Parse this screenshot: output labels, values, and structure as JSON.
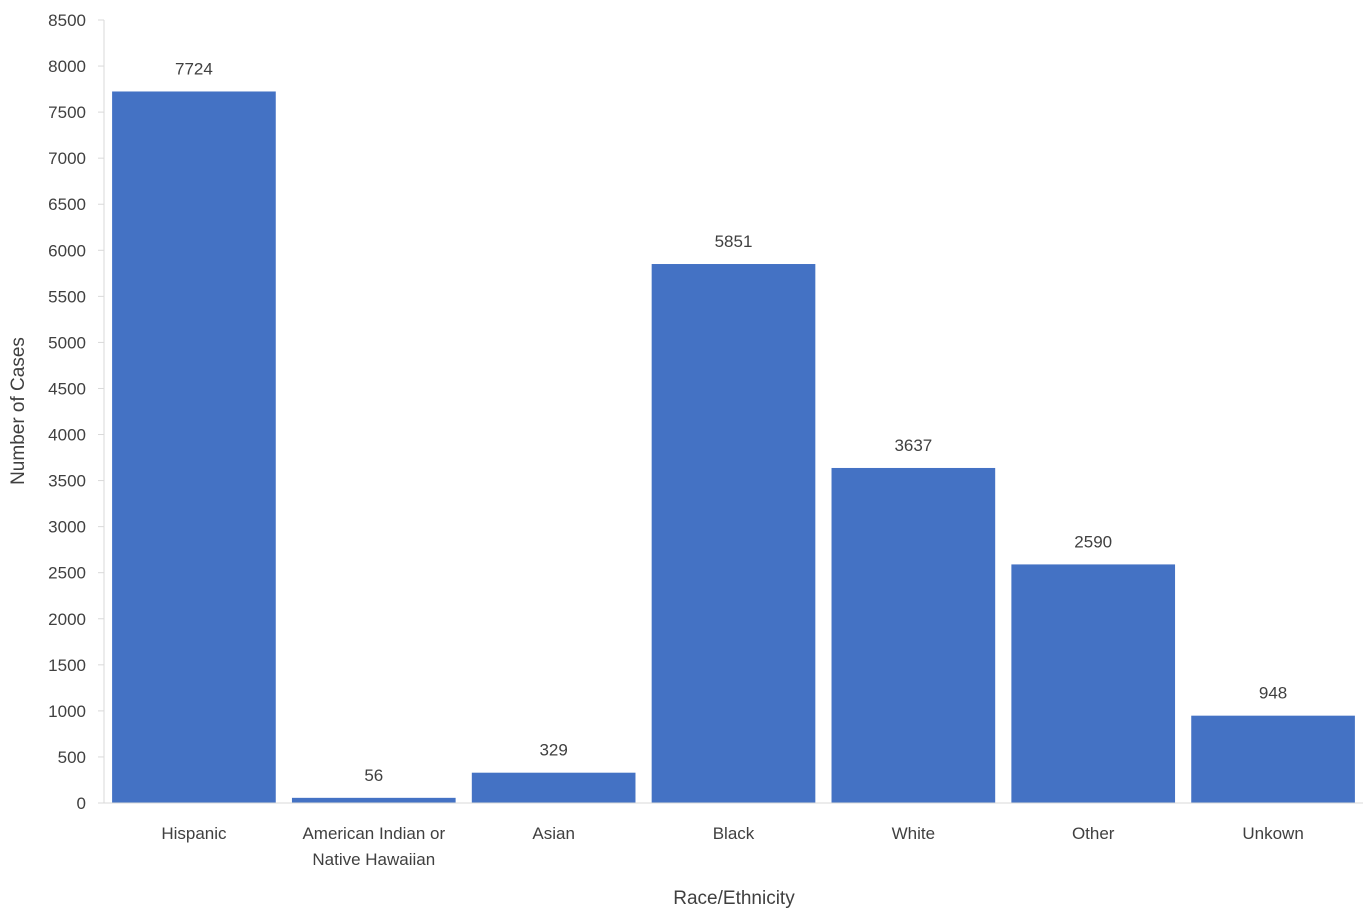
{
  "chart_data": {
    "type": "bar",
    "categories": [
      [
        "Hispanic"
      ],
      [
        "American Indian or",
        "Native Hawaiian"
      ],
      [
        "Asian"
      ],
      [
        "Black"
      ],
      [
        "White"
      ],
      [
        "Other"
      ],
      [
        "Unkown"
      ]
    ],
    "values": [
      7724,
      56,
      329,
      5851,
      3637,
      2590,
      948
    ],
    "title": "",
    "xlabel": "Race/Ethnicity",
    "ylabel": "Number of Cases",
    "ylim": [
      0,
      8500
    ],
    "yticks": [
      0,
      500,
      1000,
      1500,
      2000,
      2500,
      3000,
      3500,
      4000,
      4500,
      5000,
      5500,
      6000,
      6500,
      7000,
      7500,
      8000,
      8500
    ],
    "grid": false,
    "legend": "none",
    "bar_color": "#4472C4",
    "axis_color": "#D9D9D9"
  }
}
